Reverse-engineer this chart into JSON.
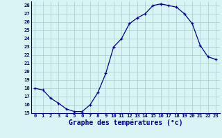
{
  "x": [
    0,
    1,
    2,
    3,
    4,
    5,
    6,
    7,
    8,
    9,
    10,
    11,
    12,
    13,
    14,
    15,
    16,
    17,
    18,
    19,
    20,
    21,
    22,
    23
  ],
  "y": [
    18.0,
    17.8,
    16.8,
    16.2,
    15.5,
    15.2,
    15.2,
    16.0,
    17.5,
    19.8,
    23.0,
    24.0,
    25.8,
    26.5,
    27.0,
    28.0,
    28.2,
    28.0,
    27.8,
    27.0,
    25.8,
    23.2,
    21.8,
    21.5
  ],
  "xlim": [
    -0.5,
    23.5
  ],
  "ylim": [
    15,
    28.5
  ],
  "yticks": [
    15,
    16,
    17,
    18,
    19,
    20,
    21,
    22,
    23,
    24,
    25,
    26,
    27,
    28
  ],
  "xticks": [
    0,
    1,
    2,
    3,
    4,
    5,
    6,
    7,
    8,
    9,
    10,
    11,
    12,
    13,
    14,
    15,
    16,
    17,
    18,
    19,
    20,
    21,
    22,
    23
  ],
  "xlabel": "Graphe des températures (°c)",
  "line_color": "#00008b",
  "marker": "+",
  "bg_color": "#d8f4f4",
  "grid_color": "#a8c8c8",
  "axis_color": "#00008b",
  "label_color": "#00008b",
  "tick_label_fontsize": 5.2,
  "xlabel_fontsize": 7.0
}
